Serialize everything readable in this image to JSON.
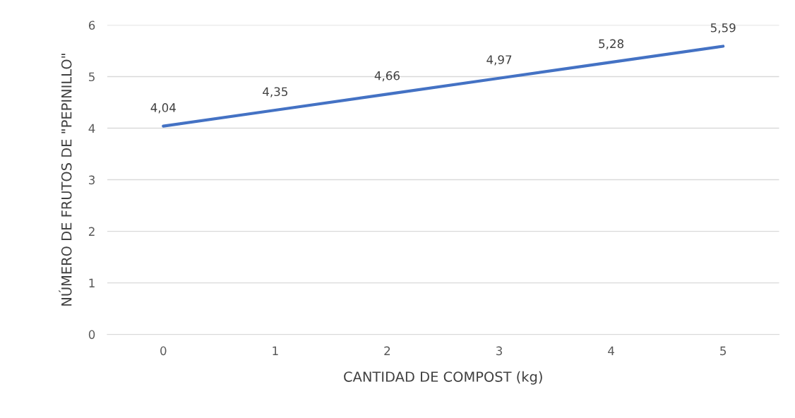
{
  "chart_data": {
    "type": "line",
    "xlabel": "CANTIDAD DE COMPOST (kg)",
    "ylabel": "NÚMERO DE FRUTOS DE \"PEPINILLO\"",
    "categories": [
      "0",
      "1",
      "2",
      "3",
      "4",
      "5"
    ],
    "series": [
      {
        "color": "#4472c4",
        "values": [
          4.04,
          4.35,
          4.66,
          4.97,
          5.28,
          5.59
        ],
        "value_labels": [
          "4,04",
          "4,35",
          "4,66",
          "4,97",
          "5,28",
          "5,59"
        ]
      }
    ],
    "ylim": [
      0,
      6
    ],
    "yticks": [
      0,
      1,
      2,
      3,
      4,
      5,
      6
    ],
    "grid": "y",
    "marker": "none",
    "line_style": "solid"
  }
}
